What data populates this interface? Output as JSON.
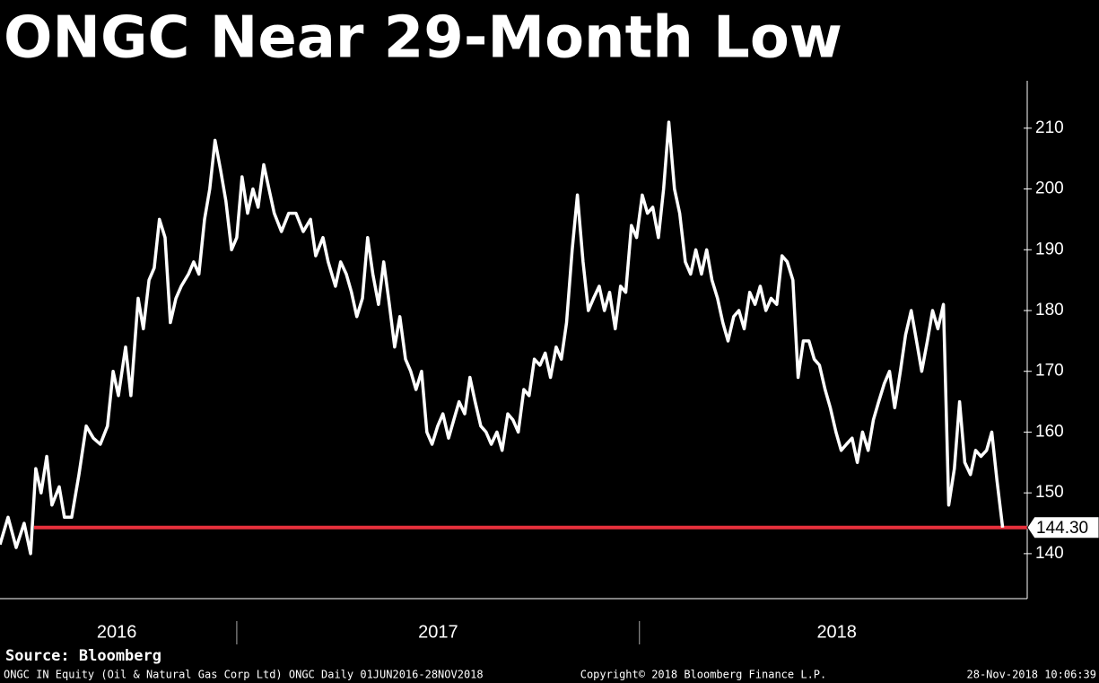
{
  "chart_data": {
    "type": "line",
    "title": "ONGC Near 29-Month Low",
    "source": "Source: Bloomberg",
    "footer_left": "ONGC IN Equity (Oil & Natural Gas Corp Ltd) ONGC  Daily 01JUN2016-28NOV2018",
    "footer_center": "Copyright© 2018 Bloomberg Finance L.P.",
    "footer_right": "28-Nov-2018 10:06:39",
    "xlim": [
      2016.412,
      2018.963
    ],
    "ylim": [
      132.6,
      217.8
    ],
    "yticks": [
      140,
      150,
      160,
      170,
      180,
      190,
      200,
      210
    ],
    "xticks": [
      {
        "value": 2016.702,
        "label": "2016"
      },
      {
        "value": 2017.5,
        "label": "2017"
      },
      {
        "value": 2018.49,
        "label": "2018"
      }
    ],
    "year_dividers": [
      2017,
      2018
    ],
    "reference_line": {
      "value": 144.3,
      "label": "144.30",
      "color": "#e8303c"
    },
    "series": [
      {
        "name": "ONGC",
        "color": "#ffffff",
        "x": [
          2016.412,
          2016.432,
          2016.452,
          2016.472,
          2016.488,
          2016.501,
          2016.514,
          2016.528,
          2016.541,
          2016.559,
          2016.572,
          2016.59,
          2016.608,
          2016.626,
          2016.644,
          2016.661,
          2016.679,
          2016.693,
          2016.706,
          2016.724,
          2016.737,
          2016.755,
          2016.768,
          2016.782,
          2016.795,
          2016.808,
          2016.822,
          2016.835,
          2016.849,
          2016.862,
          2016.88,
          2016.893,
          2016.906,
          2016.92,
          2016.933,
          2016.946,
          2016.96,
          2016.973,
          2016.987,
          2017.0,
          2017.013,
          2017.027,
          2017.04,
          2017.053,
          2017.067,
          2017.08,
          2017.093,
          2017.111,
          2017.129,
          2017.147,
          2017.165,
          2017.183,
          2017.196,
          2017.214,
          2017.227,
          2017.245,
          2017.258,
          2017.272,
          2017.285,
          2017.298,
          2017.312,
          2017.325,
          2017.338,
          2017.352,
          2017.365,
          2017.379,
          2017.392,
          2017.405,
          2017.419,
          2017.432,
          2017.445,
          2017.459,
          2017.472,
          2017.485,
          2017.499,
          2017.512,
          2017.526,
          2017.539,
          2017.552,
          2017.566,
          2017.579,
          2017.592,
          2017.606,
          2017.619,
          2017.632,
          2017.646,
          2017.659,
          2017.673,
          2017.686,
          2017.699,
          2017.713,
          2017.726,
          2017.739,
          2017.753,
          2017.766,
          2017.779,
          2017.793,
          2017.806,
          2017.819,
          2017.833,
          2017.846,
          2017.86,
          2017.873,
          2017.886,
          2017.9,
          2017.913,
          2017.926,
          2017.94,
          2017.953,
          2017.966,
          2017.98,
          2017.993,
          2018.007,
          2018.02,
          2018.033,
          2018.047,
          2018.06,
          2018.073,
          2018.087,
          2018.1,
          2018.114,
          2018.127,
          2018.14,
          2018.154,
          2018.167,
          2018.18,
          2018.194,
          2018.207,
          2018.22,
          2018.234,
          2018.247,
          2018.26,
          2018.274,
          2018.287,
          2018.3,
          2018.314,
          2018.327,
          2018.341,
          2018.354,
          2018.367,
          2018.381,
          2018.394,
          2018.407,
          2018.421,
          2018.434,
          2018.447,
          2018.461,
          2018.474,
          2018.488,
          2018.501,
          2018.514,
          2018.528,
          2018.541,
          2018.554,
          2018.568,
          2018.581,
          2018.594,
          2018.608,
          2018.621,
          2018.634,
          2018.648,
          2018.661,
          2018.675,
          2018.688,
          2018.701,
          2018.715,
          2018.728,
          2018.741,
          2018.755,
          2018.768,
          2018.782,
          2018.795,
          2018.808,
          2018.822,
          2018.835,
          2018.848,
          2018.862,
          2018.875,
          2018.888,
          2018.902
        ],
        "values": [
          141.5,
          146,
          141,
          145,
          140,
          154,
          150,
          156,
          148,
          151,
          146,
          146,
          153,
          161,
          159,
          158,
          161,
          170,
          166,
          174,
          166,
          182,
          177,
          185,
          187,
          195,
          192,
          178,
          182,
          184,
          186,
          188,
          186,
          195,
          200,
          208,
          203,
          198,
          190,
          192,
          202,
          196,
          200,
          197,
          204,
          200,
          196,
          193,
          196,
          196,
          193,
          195,
          189,
          192,
          188,
          184,
          188,
          186,
          183,
          179,
          182,
          192,
          186,
          181,
          188,
          181,
          174,
          179,
          172,
          170,
          167,
          170,
          160,
          158,
          161,
          163,
          159,
          162,
          165,
          163,
          169,
          165,
          161,
          160,
          158,
          160,
          157,
          163,
          162,
          160,
          167,
          166,
          172,
          171,
          173,
          169,
          174,
          172,
          178,
          190,
          199,
          188,
          180,
          182,
          184,
          180,
          183,
          177,
          184,
          183,
          194,
          192,
          199,
          196,
          197,
          192,
          200,
          211,
          200,
          196,
          188,
          186,
          190,
          186,
          190,
          185,
          182,
          178,
          175,
          179,
          180,
          177,
          183,
          181,
          184,
          180,
          182,
          181,
          189,
          188,
          185,
          169,
          175,
          175,
          172,
          171,
          167,
          164,
          160,
          157,
          158,
          159,
          155,
          160,
          157,
          162,
          165,
          168,
          170,
          164,
          170,
          176,
          180,
          175,
          170,
          175,
          180,
          177,
          181,
          148,
          154,
          165,
          155,
          153,
          157,
          156,
          157,
          160,
          152,
          144.3
        ]
      }
    ]
  }
}
